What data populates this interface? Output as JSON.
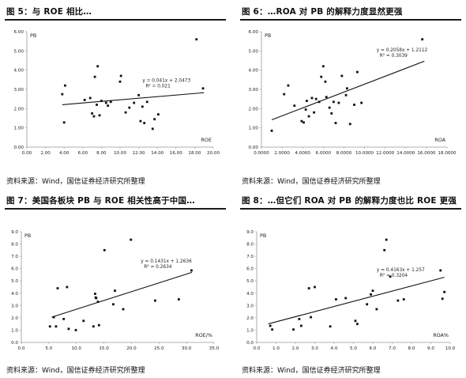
{
  "source_text": "资料来源：Wind，国信证券经济研究所整理",
  "chart_data": [
    {
      "type": "scatter",
      "title": "图 5：与 ROE 相比…",
      "xlabel": "ROE",
      "ylabel": "PB",
      "xlim": [
        0,
        20
      ],
      "ylim": [
        0,
        6
      ],
      "x_ticks": [
        "0.00",
        "2.00",
        "4.00",
        "6.00",
        "8.00",
        "10.00",
        "12.00",
        "14.00",
        "16.00",
        "18.00",
        "20.00"
      ],
      "y_ticks": [
        "0.00",
        "1.00",
        "2.00",
        "3.00",
        "4.00",
        "5.00",
        "6.00"
      ],
      "equation": "y = 0.041x + 2.0473",
      "r2": "R² = 0.021",
      "trendline": {
        "slope": 0.041,
        "intercept": 2.0473,
        "x_range": [
          3.8,
          19.0
        ]
      },
      "points": [
        [
          3.8,
          2.75
        ],
        [
          4.0,
          1.28
        ],
        [
          4.1,
          3.2
        ],
        [
          6.2,
          2.45
        ],
        [
          6.8,
          2.55
        ],
        [
          7.0,
          1.75
        ],
        [
          7.2,
          1.6
        ],
        [
          7.3,
          3.65
        ],
        [
          7.5,
          2.2
        ],
        [
          7.6,
          4.2
        ],
        [
          7.8,
          1.65
        ],
        [
          8.0,
          2.4
        ],
        [
          8.5,
          2.3
        ],
        [
          8.7,
          2.15
        ],
        [
          9.0,
          2.35
        ],
        [
          10.0,
          3.4
        ],
        [
          10.1,
          3.7
        ],
        [
          10.6,
          1.8
        ],
        [
          11.0,
          2.05
        ],
        [
          11.5,
          2.3
        ],
        [
          12.0,
          2.7
        ],
        [
          12.2,
          1.35
        ],
        [
          12.4,
          2.1
        ],
        [
          12.6,
          1.25
        ],
        [
          12.9,
          2.35
        ],
        [
          13.5,
          0.95
        ],
        [
          13.7,
          1.45
        ],
        [
          14.1,
          1.7
        ],
        [
          18.2,
          5.6
        ],
        [
          18.9,
          3.05
        ]
      ]
    },
    {
      "type": "scatter",
      "title": "图 6：…ROA 对 PB 的解释力度显然更强",
      "xlabel": "ROA",
      "ylabel": "PB",
      "xlim": [
        0,
        18
      ],
      "ylim": [
        0,
        6
      ],
      "x_ticks": [
        "0.0000",
        "2.0000",
        "4.0000",
        "6.0000",
        "8.0000",
        "10.0000",
        "12.0000",
        "14.0000",
        "16.0000",
        "18.0000"
      ],
      "y_ticks": [
        "0.00",
        "1.00",
        "2.00",
        "3.00",
        "4.00",
        "5.00",
        "6.00"
      ],
      "equation": "y = 0.2058x + 1.2112",
      "r2": "R² = 0.3039",
      "trendline": {
        "slope": 0.2058,
        "intercept": 1.2112,
        "x_range": [
          1.0,
          15.8
        ]
      },
      "points": [
        [
          1.0,
          0.85
        ],
        [
          2.2,
          2.75
        ],
        [
          2.6,
          3.2
        ],
        [
          3.2,
          2.15
        ],
        [
          3.9,
          1.35
        ],
        [
          4.1,
          1.28
        ],
        [
          4.3,
          1.95
        ],
        [
          4.4,
          2.4
        ],
        [
          4.6,
          1.6
        ],
        [
          4.9,
          2.55
        ],
        [
          5.1,
          1.8
        ],
        [
          5.3,
          2.5
        ],
        [
          5.6,
          2.35
        ],
        [
          5.8,
          3.65
        ],
        [
          6.0,
          4.2
        ],
        [
          6.2,
          3.4
        ],
        [
          6.6,
          2.05
        ],
        [
          6.8,
          1.75
        ],
        [
          7.0,
          2.35
        ],
        [
          7.2,
          1.25
        ],
        [
          7.5,
          2.3
        ],
        [
          7.8,
          3.7
        ],
        [
          8.2,
          2.7
        ],
        [
          8.6,
          1.2
        ],
        [
          9.0,
          2.2
        ],
        [
          9.3,
          3.9
        ],
        [
          9.7,
          2.3
        ],
        [
          8.3,
          3.05
        ],
        [
          15.6,
          5.6
        ],
        [
          6.3,
          2.6
        ]
      ]
    },
    {
      "type": "scatter",
      "title": "图 7：美国各板块 PB 与 ROE 相关性高于中国…",
      "xlabel": "ROE/%",
      "ylabel": "PB",
      "xlim": [
        0,
        35
      ],
      "ylim": [
        0,
        9
      ],
      "x_ticks": [
        "0.0",
        "5.0",
        "10.0",
        "15.0",
        "20.0",
        "25.0",
        "30.0",
        "35.0"
      ],
      "y_ticks": [
        "0.0",
        "1.0",
        "2.0",
        "3.0",
        "4.0",
        "5.0",
        "6.0",
        "7.0",
        "8.0",
        "9.0"
      ],
      "equation": "y = 0.1431x + 1.2636",
      "r2": "R² = 0.2634",
      "trendline": {
        "slope": 0.1431,
        "intercept": 1.2636,
        "x_range": [
          5.5,
          31.0
        ]
      },
      "points": [
        [
          5.2,
          1.3
        ],
        [
          5.9,
          2.05
        ],
        [
          6.3,
          1.3
        ],
        [
          6.6,
          4.4
        ],
        [
          7.7,
          1.9
        ],
        [
          8.3,
          4.5
        ],
        [
          8.6,
          1.1
        ],
        [
          9.9,
          1.0
        ],
        [
          11.3,
          1.75
        ],
        [
          13.1,
          1.3
        ],
        [
          13.4,
          3.95
        ],
        [
          13.5,
          3.65
        ],
        [
          13.6,
          3.6
        ],
        [
          13.9,
          3.3
        ],
        [
          14.1,
          1.4
        ],
        [
          15.1,
          7.5
        ],
        [
          16.7,
          3.1
        ],
        [
          17.0,
          4.2
        ],
        [
          18.5,
          2.7
        ],
        [
          19.9,
          8.35
        ],
        [
          24.3,
          3.4
        ],
        [
          28.6,
          3.5
        ],
        [
          30.9,
          5.85
        ]
      ]
    },
    {
      "type": "scatter",
      "title": "图 8：…但它们 ROA 对 PB 的解释力度也比 ROE 更强",
      "xlabel": "ROA%",
      "ylabel": "PB",
      "xlim": [
        0,
        10
      ],
      "ylim": [
        0,
        9
      ],
      "x_ticks": [
        "0.0",
        "1.0",
        "2.0",
        "3.0",
        "4.0",
        "5.0",
        "6.0",
        "7.0",
        "8.0",
        "9.0",
        "10.0"
      ],
      "y_ticks": [
        "0.0",
        "1.0",
        "2.0",
        "3.0",
        "4.0",
        "5.0",
        "6.0",
        "7.0",
        "8.0",
        "9.0"
      ],
      "equation": "y = 0.4163x + 1.257",
      "r2": "R² = 0.3204",
      "trendline": {
        "slope": 0.4163,
        "intercept": 1.257,
        "x_range": [
          0.6,
          9.7
        ]
      },
      "points": [
        [
          0.7,
          1.35
        ],
        [
          0.8,
          1.05
        ],
        [
          1.9,
          1.05
        ],
        [
          2.2,
          1.9
        ],
        [
          2.3,
          1.35
        ],
        [
          2.7,
          4.4
        ],
        [
          2.8,
          2.05
        ],
        [
          3.0,
          4.5
        ],
        [
          3.8,
          1.3
        ],
        [
          4.1,
          3.5
        ],
        [
          4.6,
          3.6
        ],
        [
          5.1,
          1.75
        ],
        [
          5.2,
          1.5
        ],
        [
          5.7,
          3.1
        ],
        [
          5.9,
          3.9
        ],
        [
          6.0,
          4.2
        ],
        [
          6.2,
          2.7
        ],
        [
          6.6,
          7.5
        ],
        [
          6.7,
          8.35
        ],
        [
          6.9,
          5.35
        ],
        [
          7.3,
          3.4
        ],
        [
          7.6,
          3.5
        ],
        [
          9.5,
          5.85
        ],
        [
          9.6,
          3.55
        ],
        [
          9.7,
          4.1
        ]
      ]
    }
  ]
}
